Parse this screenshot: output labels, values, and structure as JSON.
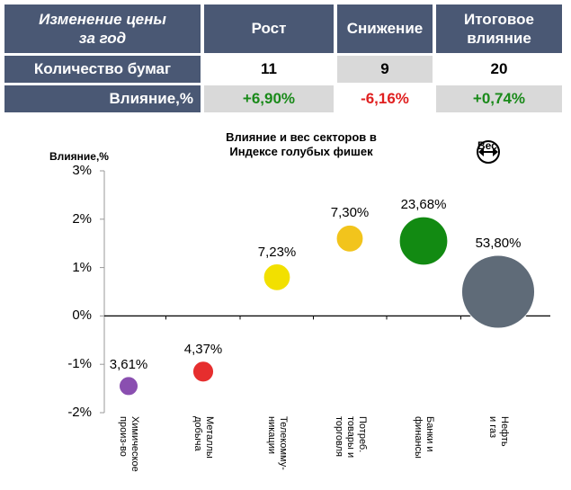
{
  "table": {
    "title_line1": "Изменение цены",
    "title_line2": "за год",
    "col_growth": "Рост",
    "col_decline": "Снижение",
    "col_total_line1": "Итоговое",
    "col_total_line2": "влияние",
    "row_count_label": "Количество бумаг",
    "row_count_growth": "11",
    "row_count_decline": "9",
    "row_count_total": "20",
    "row_impact_label": "Влияние,%",
    "row_impact_growth": "+6,90%",
    "row_impact_decline": "-6,16%",
    "row_impact_total": "+0,74%"
  },
  "colors": {
    "header_bg": "#4a5874",
    "positive": "#1a8a1a",
    "negative": "#e02020"
  },
  "chart_data": {
    "type": "bubble",
    "title_line1": "Влияние и вес секторов  в",
    "title_line2": "Индексе голубых фишек",
    "ylabel": "Влияние,%",
    "legend_label": "Вес",
    "ylim": [
      -2,
      3
    ],
    "yticks": [
      "3%",
      "2%",
      "1%",
      "0%",
      "-1%",
      "-2%"
    ],
    "ytick_values": [
      3,
      2,
      1,
      0,
      -1,
      -2
    ],
    "points": [
      {
        "name_line1": "Химическое",
        "name_line2": "произ-во",
        "name_line3": "",
        "impact": -1.45,
        "weight": 3.61,
        "weight_label": "3,61%",
        "color": "#8a4fb0"
      },
      {
        "name_line1": "Металлы",
        "name_line2": "добыча",
        "name_line3": "",
        "impact": -1.15,
        "weight": 4.37,
        "weight_label": "4,37%",
        "color": "#e62e2e"
      },
      {
        "name_line1": "Телекомму-",
        "name_line2": "никации",
        "name_line3": "",
        "impact": 0.8,
        "weight": 7.23,
        "weight_label": "7,23%",
        "color": "#f2e000"
      },
      {
        "name_line1": "Потреб.",
        "name_line2": "товары и",
        "name_line3": "торговля",
        "impact": 1.6,
        "weight": 7.3,
        "weight_label": "7,30%",
        "color": "#f2c41c"
      },
      {
        "name_line1": "Банки и",
        "name_line2": "финансы",
        "name_line3": "",
        "impact": 1.55,
        "weight": 23.68,
        "weight_label": "23,68%",
        "color": "#128a12"
      },
      {
        "name_line1": "Нефть",
        "name_line2": "и газ",
        "name_line3": "",
        "impact": 0.5,
        "weight": 53.8,
        "weight_label": "53,80%",
        "color": "#5f6b78"
      }
    ]
  }
}
